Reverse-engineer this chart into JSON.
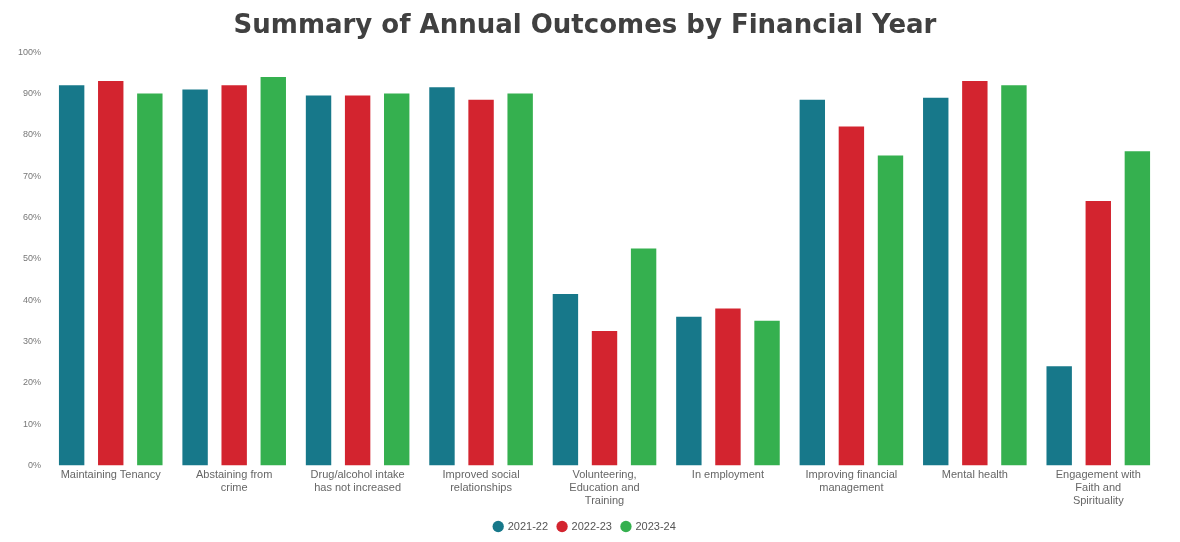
{
  "chart_data": {
    "type": "bar",
    "title": "Summary of Annual Outcomes by Financial Year",
    "categories": [
      "Maintaining Tenancy",
      "Abstaining from crime",
      "Drug/alcohol intake has not increased",
      "Improved social relationships",
      "Volunteering, Education and Training",
      "In employment",
      "Improving financial management",
      "Mental health",
      "Engagement with Faith and Spirituality"
    ],
    "series": [
      {
        "name": "2021-22",
        "color": "#17788a",
        "values": [
          92,
          91,
          89.5,
          91.5,
          41.5,
          36,
          88.5,
          89,
          24
        ]
      },
      {
        "name": "2022-23",
        "color": "#d3242f",
        "values": [
          93,
          92,
          89.5,
          88.5,
          32.5,
          38,
          82,
          93,
          64
        ]
      },
      {
        "name": "2023-24",
        "color": "#35b04f",
        "values": [
          90,
          94,
          90,
          90,
          52.5,
          35,
          75,
          92,
          76
        ]
      }
    ],
    "ylim": [
      0,
      100
    ],
    "yticks": [
      {
        "value": 0,
        "label": "0%"
      },
      {
        "value": 10,
        "label": "10%"
      },
      {
        "value": 20,
        "label": "20%"
      },
      {
        "value": 30,
        "label": "30%"
      },
      {
        "value": 40,
        "label": "40%"
      },
      {
        "value": 50,
        "label": "50%"
      },
      {
        "value": 60,
        "label": "60%"
      },
      {
        "value": 70,
        "label": "70%"
      },
      {
        "value": 80,
        "label": "80%"
      },
      {
        "value": 90,
        "label": "90%"
      },
      {
        "value": 100,
        "label": "100%"
      }
    ],
    "grid": false,
    "legend": "bottom"
  }
}
